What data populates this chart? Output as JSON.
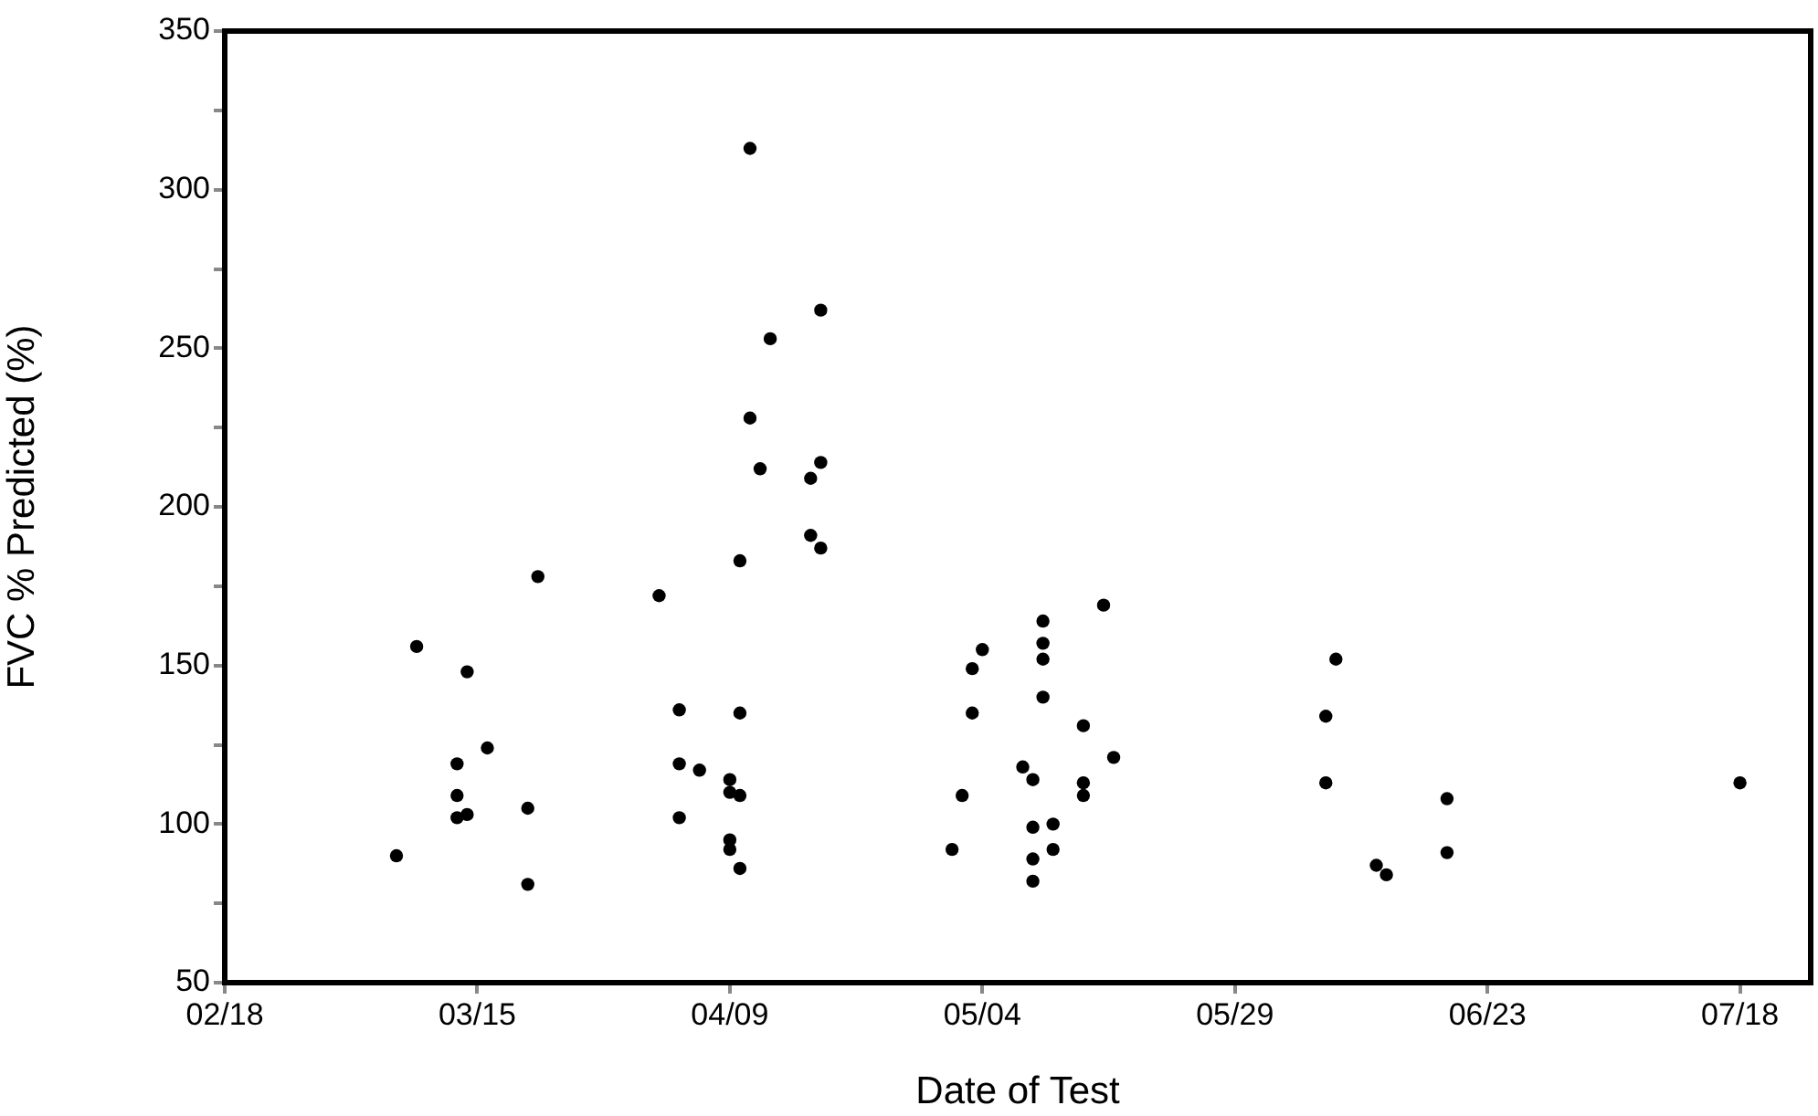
{
  "chart_data": {
    "type": "scatter",
    "xlabel": "Date of Test",
    "ylabel": "FVC % Predicted (%)",
    "x": [
      "--03-07",
      "--03-09",
      "--03-14",
      "--03-13",
      "--03-13",
      "--03-13",
      "--03-14",
      "--03-16",
      "--03-20",
      "--03-20",
      "--03-21",
      "--04-11",
      "--04-18",
      "--04-13",
      "--04-11",
      "--04-12",
      "--04-18",
      "--04-17",
      "--04-17",
      "--04-18",
      "--04-10",
      "--04-02",
      "--04-04",
      "--04-10",
      "--04-04",
      "--04-06",
      "--04-09",
      "--04-09",
      "--04-10",
      "--04-04",
      "--04-09",
      "--04-09",
      "--04-10",
      "--05-16",
      "--05-10",
      "--05-10",
      "--05-04",
      "--05-10",
      "--05-03",
      "--05-10",
      "--05-03",
      "--05-14",
      "--05-17",
      "--05-08",
      "--05-09",
      "--05-14",
      "--05-14",
      "--05-02",
      "--05-09",
      "--05-11",
      "--05-01",
      "--05-11",
      "--05-09",
      "--05-09",
      "--06-08",
      "--06-07",
      "--06-07",
      "--06-19",
      "--06-19",
      "--06-12",
      "--06-13",
      "--07-18"
    ],
    "values": [
      90,
      156,
      148,
      119,
      109,
      102,
      103,
      124,
      105,
      81,
      178,
      313,
      262,
      253,
      228,
      212,
      214,
      209,
      191,
      187,
      183,
      172,
      136,
      135,
      119,
      117,
      114,
      110,
      109,
      102,
      95,
      92,
      86,
      169,
      164,
      157,
      155,
      152,
      149,
      140,
      135,
      131,
      121,
      118,
      114,
      113,
      109,
      109,
      99,
      100,
      92,
      92,
      89,
      82,
      152,
      134,
      113,
      108,
      91,
      87,
      84,
      113
    ],
    "color": "#000000",
    "marker": "circle",
    "xlim": [
      "--02-18",
      "--07-25"
    ],
    "xticks": [
      {
        "value": "--02-18",
        "label": "02/18"
      },
      {
        "value": "--03-15",
        "label": "03/15"
      },
      {
        "value": "--04-09",
        "label": "04/09"
      },
      {
        "value": "--05-04",
        "label": "05/04"
      },
      {
        "value": "--05-29",
        "label": "05/29"
      },
      {
        "value": "--06-23",
        "label": "06/23"
      },
      {
        "value": "--07-18",
        "label": "07/18"
      }
    ],
    "ylim": [
      50,
      350
    ],
    "yticks": [
      50,
      {
        "value": 75,
        "label": null
      },
      100,
      {
        "value": 125,
        "label": null
      },
      150,
      {
        "value": 175,
        "label": null
      },
      200,
      {
        "value": 225,
        "label": null
      },
      250,
      {
        "value": 275,
        "label": null
      },
      300,
      {
        "value": 325,
        "label": null
      },
      350
    ]
  }
}
